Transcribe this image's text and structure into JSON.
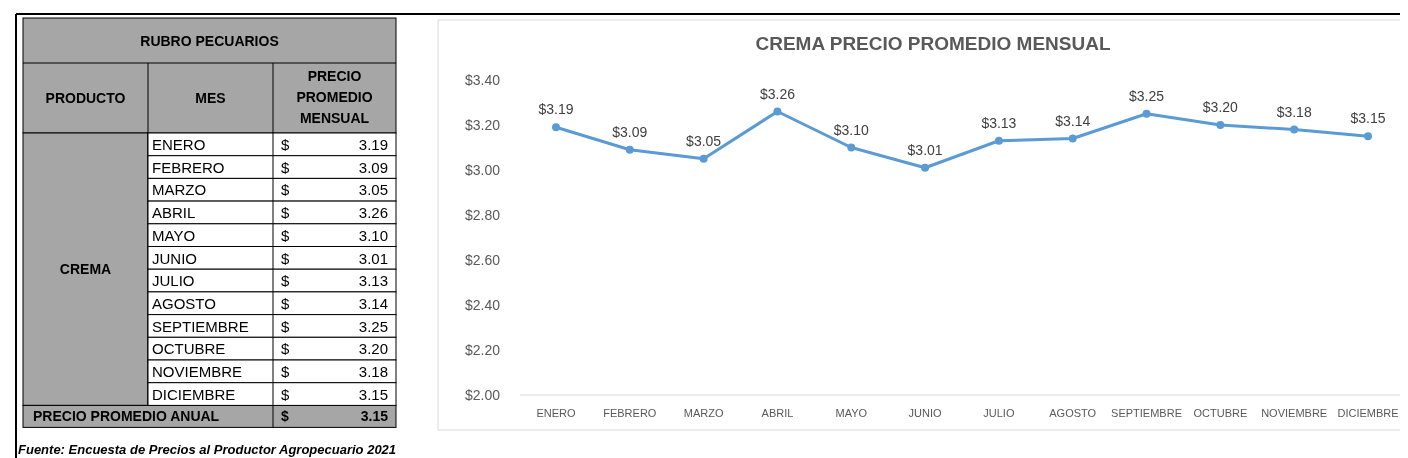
{
  "chart_data": {
    "type": "line",
    "title": "CREMA PRECIO PROMEDIO MENSUAL",
    "categories": [
      "ENERO",
      "FEBRERO",
      "MARZO",
      "ABRIL",
      "MAYO",
      "JUNIO",
      "JULIO",
      "AGOSTO",
      "SEPTIEMBRE",
      "OCTUBRE",
      "NOVIEMBRE",
      "DICIEMBRE"
    ],
    "values": [
      3.19,
      3.09,
      3.05,
      3.26,
      3.1,
      3.01,
      3.13,
      3.14,
      3.25,
      3.2,
      3.18,
      3.15
    ],
    "value_labels": [
      "$3.19",
      "$3.09",
      "$3.05",
      "$3.26",
      "$3.10",
      "$3.01",
      "$3.13",
      "$3.14",
      "$3.25",
      "$3.20",
      "$3.18",
      "$3.15"
    ],
    "color": "#5b9bd5",
    "marker": "circle",
    "line_style": "solid",
    "grid": false,
    "ylim": [
      2,
      3.4
    ],
    "yticks": [
      {
        "value": 2,
        "label": "$2.00"
      },
      {
        "value": 2.2,
        "label": "$2.20"
      },
      {
        "value": 2.4,
        "label": "$2.40"
      },
      {
        "value": 2.6,
        "label": "$2.60"
      },
      {
        "value": 2.8,
        "label": "$2.80"
      },
      {
        "value": 3,
        "label": "$3.00"
      },
      {
        "value": 3.2,
        "label": "$3.20"
      },
      {
        "value": 3.4,
        "label": "$3.40"
      }
    ],
    "annotations": [
      "RUBRO PECUARIOS",
      "PRODUCTO",
      "MES",
      "PRECIO PROMEDIO MENSUAL",
      "CREMA",
      "PRECIO PROMEDIO ANUAL",
      "$",
      "3.15",
      "Fuente: Encuesta de Precios al Productor Agropecuario 2021",
      "3.19",
      "3.09",
      "3.05",
      "3.26",
      "3.10",
      "3.01",
      "3.13",
      "3.14",
      "3.25",
      "3.20",
      "3.18",
      "3.15"
    ]
  }
}
